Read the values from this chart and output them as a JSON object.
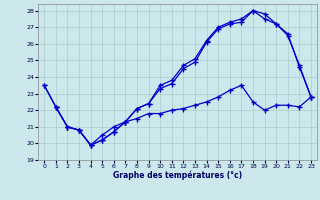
{
  "title": "Graphe des températures (°c)",
  "bg_color": "#cce8ec",
  "grid_color": "#aacccc",
  "line_color": "#0000cc",
  "xlim": [
    -0.5,
    23.5
  ],
  "ylim": [
    19,
    28.4
  ],
  "xticks": [
    0,
    1,
    2,
    3,
    4,
    5,
    6,
    7,
    8,
    9,
    10,
    11,
    12,
    13,
    14,
    15,
    16,
    17,
    18,
    19,
    20,
    21,
    22,
    23
  ],
  "yticks": [
    19,
    20,
    21,
    22,
    23,
    24,
    25,
    26,
    27,
    28
  ],
  "line1_x": [
    0,
    1,
    2,
    3,
    4,
    5,
    6,
    7,
    8,
    9,
    10,
    11,
    12,
    13,
    14,
    15,
    16,
    17,
    18,
    19,
    20,
    21,
    22,
    23
  ],
  "line1_y": [
    23.5,
    22.2,
    21.0,
    20.8,
    19.9,
    20.2,
    20.7,
    21.3,
    22.1,
    22.4,
    23.3,
    23.6,
    24.5,
    24.9,
    26.1,
    26.9,
    27.2,
    27.3,
    28.0,
    27.8,
    27.2,
    26.6,
    24.6,
    22.8
  ],
  "line2_x": [
    0,
    1,
    2,
    3,
    4,
    5,
    6,
    7,
    8,
    9,
    10,
    11,
    12,
    13,
    14,
    15,
    16,
    17,
    18,
    19,
    20,
    21,
    22,
    23
  ],
  "line2_y": [
    23.5,
    22.2,
    21.0,
    20.8,
    19.9,
    20.2,
    20.7,
    21.3,
    22.1,
    22.4,
    23.5,
    23.8,
    24.7,
    25.1,
    26.2,
    27.0,
    27.3,
    27.5,
    28.0,
    27.5,
    27.2,
    26.5,
    24.7,
    22.8
  ],
  "line3_x": [
    1,
    2,
    3,
    4,
    5,
    6,
    7,
    8,
    9,
    10,
    11,
    12,
    13,
    14,
    15,
    16,
    17,
    18,
    19,
    20,
    21,
    22,
    23
  ],
  "line3_y": [
    22.2,
    21.0,
    20.8,
    19.9,
    20.5,
    21.0,
    21.3,
    21.5,
    21.8,
    21.8,
    22.0,
    22.1,
    22.3,
    22.5,
    22.8,
    23.2,
    23.5,
    22.5,
    22.0,
    22.3,
    22.3,
    22.2,
    22.8
  ]
}
